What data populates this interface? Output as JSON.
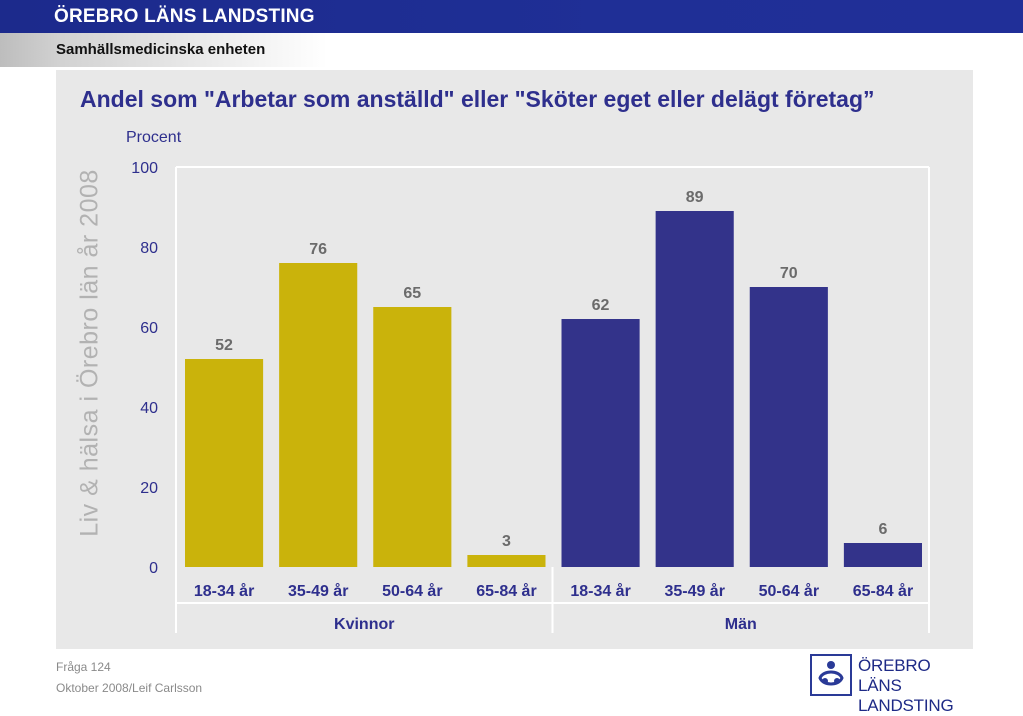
{
  "header": {
    "organization": "ÖREBRO LÄNS LANDSTING",
    "unit": "Samhällsmedicinska enheten"
  },
  "watermark": "Liv & hälsa i Örebro län år 2008",
  "footer": {
    "question": "Fråga 124",
    "date_author": "Oktober 2008/Leif Carlsson"
  },
  "logo": {
    "line1": "ÖREBRO LÄNS",
    "line2": "LANDSTING"
  },
  "colors": {
    "kvinnor": "#cab30b",
    "man": "#33338a",
    "title": "#2e2f8d",
    "panel": "#e8e8e8"
  },
  "chart_data": {
    "type": "bar",
    "title": "Andel som \"Arbetar som anställd\" eller \"Sköter eget eller delägt företag”",
    "ylabel": "Procent",
    "ylim": [
      0,
      100
    ],
    "yticks": [
      0,
      20,
      40,
      60,
      80,
      100
    ],
    "grid": false,
    "groups": [
      "Kvinnor",
      "Män"
    ],
    "categories": [
      "18-34 år",
      "35-49 år",
      "50-64 år",
      "65-84 år"
    ],
    "series": [
      {
        "name": "Kvinnor",
        "values": [
          52,
          76,
          65,
          3
        ]
      },
      {
        "name": "Män",
        "values": [
          62,
          89,
          70,
          6
        ]
      }
    ]
  }
}
